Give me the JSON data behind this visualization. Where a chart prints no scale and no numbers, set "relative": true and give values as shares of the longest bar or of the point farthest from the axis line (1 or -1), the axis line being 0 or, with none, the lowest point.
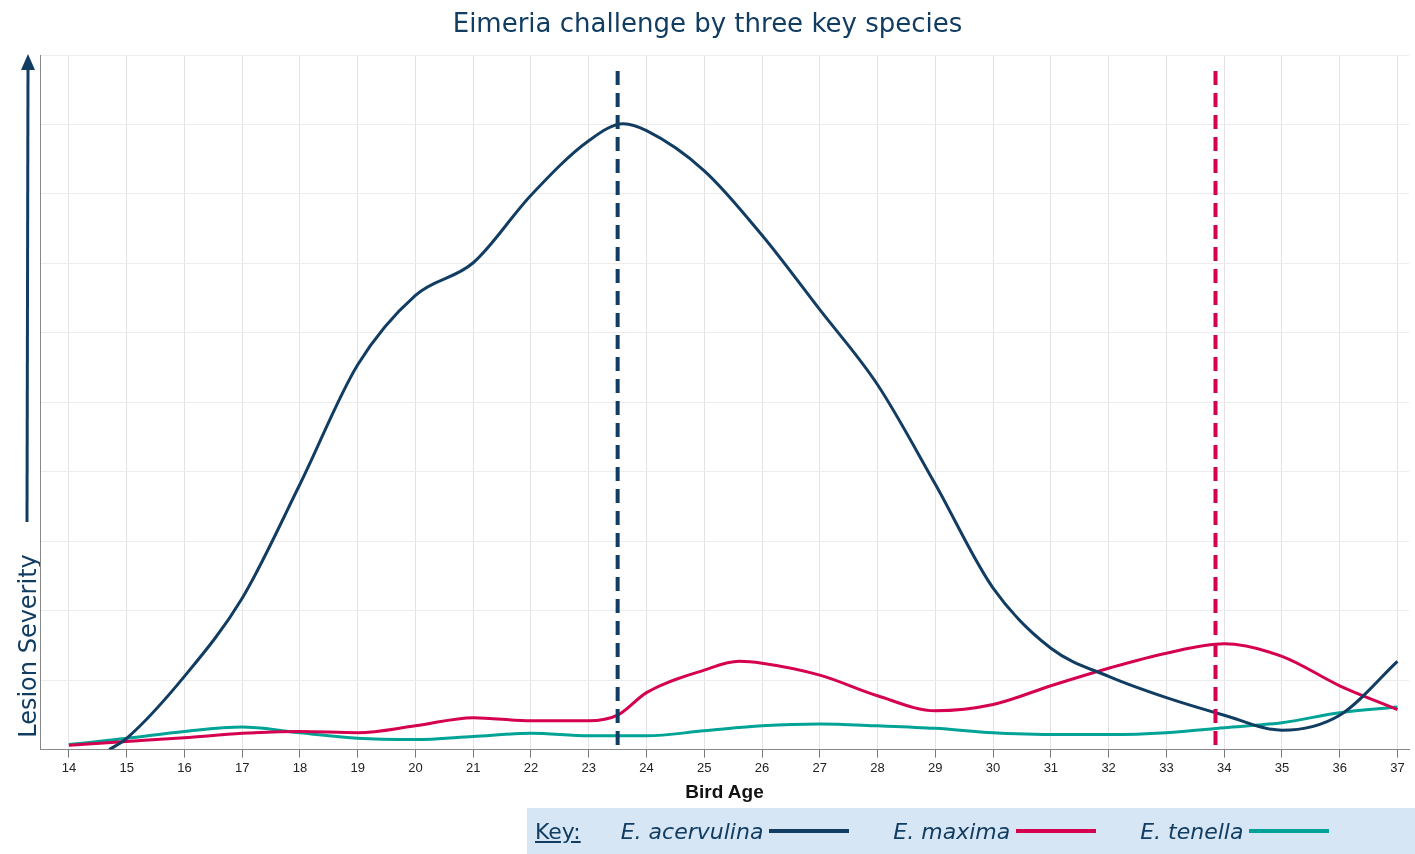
{
  "chart_data": {
    "type": "line",
    "title": "Eimeria challenge by three key species",
    "xlabel": "Bird Age",
    "ylabel": "Lesion Severity",
    "legend_title": "Key:",
    "relative": true,
    "xlim": [
      13.5,
      37.2
    ],
    "xticks": [
      14,
      15,
      16,
      17,
      18,
      19,
      20,
      21,
      22,
      23,
      24,
      25,
      26,
      27,
      28,
      29,
      30,
      31,
      32,
      33,
      34,
      35,
      36,
      37
    ],
    "grid": true,
    "legend": "bottom",
    "marker": "none",
    "line_style": "solid",
    "series": [
      {
        "name": "E. acervulina",
        "color": "#123d63",
        "x": [
          14.7,
          15,
          16,
          17,
          18,
          19,
          20,
          21,
          22,
          23,
          23.6,
          24,
          25,
          26,
          27,
          28,
          29,
          30,
          31,
          32,
          33,
          34,
          35,
          36,
          37
        ],
        "values": [
          0,
          0.018,
          0.117,
          0.242,
          0.424,
          0.615,
          0.726,
          0.778,
          0.886,
          0.973,
          1,
          0.989,
          0.925,
          0.822,
          0.703,
          0.583,
          0.424,
          0.258,
          0.162,
          0.117,
          0.083,
          0.055,
          0.031,
          0.055,
          0.141
        ]
      },
      {
        "name": "E. maxima",
        "color": "#d5004f",
        "x": [
          14,
          15,
          16,
          17,
          18,
          19,
          20,
          21,
          22,
          23,
          23.5,
          24,
          25,
          25.6,
          26,
          27,
          28,
          29,
          30,
          31,
          32,
          33,
          34,
          35,
          36,
          37
        ],
        "values": [
          0.007,
          0.013,
          0.019,
          0.026,
          0.029,
          0.027,
          0.038,
          0.051,
          0.046,
          0.046,
          0.055,
          0.091,
          0.127,
          0.141,
          0.138,
          0.119,
          0.086,
          0.062,
          0.072,
          0.102,
          0.13,
          0.154,
          0.169,
          0.149,
          0.102,
          0.064
        ]
      },
      {
        "name": "E. tenella",
        "color": "#00a396",
        "x": [
          14,
          15,
          16,
          17,
          18,
          19,
          20,
          21,
          22,
          23,
          24,
          25,
          26,
          27,
          28,
          29,
          30,
          31,
          32,
          33,
          34,
          35,
          36,
          37
        ],
        "values": [
          0.008,
          0.018,
          0.029,
          0.036,
          0.027,
          0.018,
          0.016,
          0.021,
          0.026,
          0.022,
          0.022,
          0.03,
          0.038,
          0.041,
          0.038,
          0.034,
          0.027,
          0.024,
          0.024,
          0.027,
          0.035,
          0.043,
          0.059,
          0.068
        ]
      }
    ],
    "ref_lines": [
      {
        "axis": "x",
        "value": 23.5,
        "color": "#123d63",
        "line_style": "dashed"
      },
      {
        "axis": "x",
        "value": 33.85,
        "color": "#d5004f",
        "line_style": "dashed"
      }
    ]
  }
}
